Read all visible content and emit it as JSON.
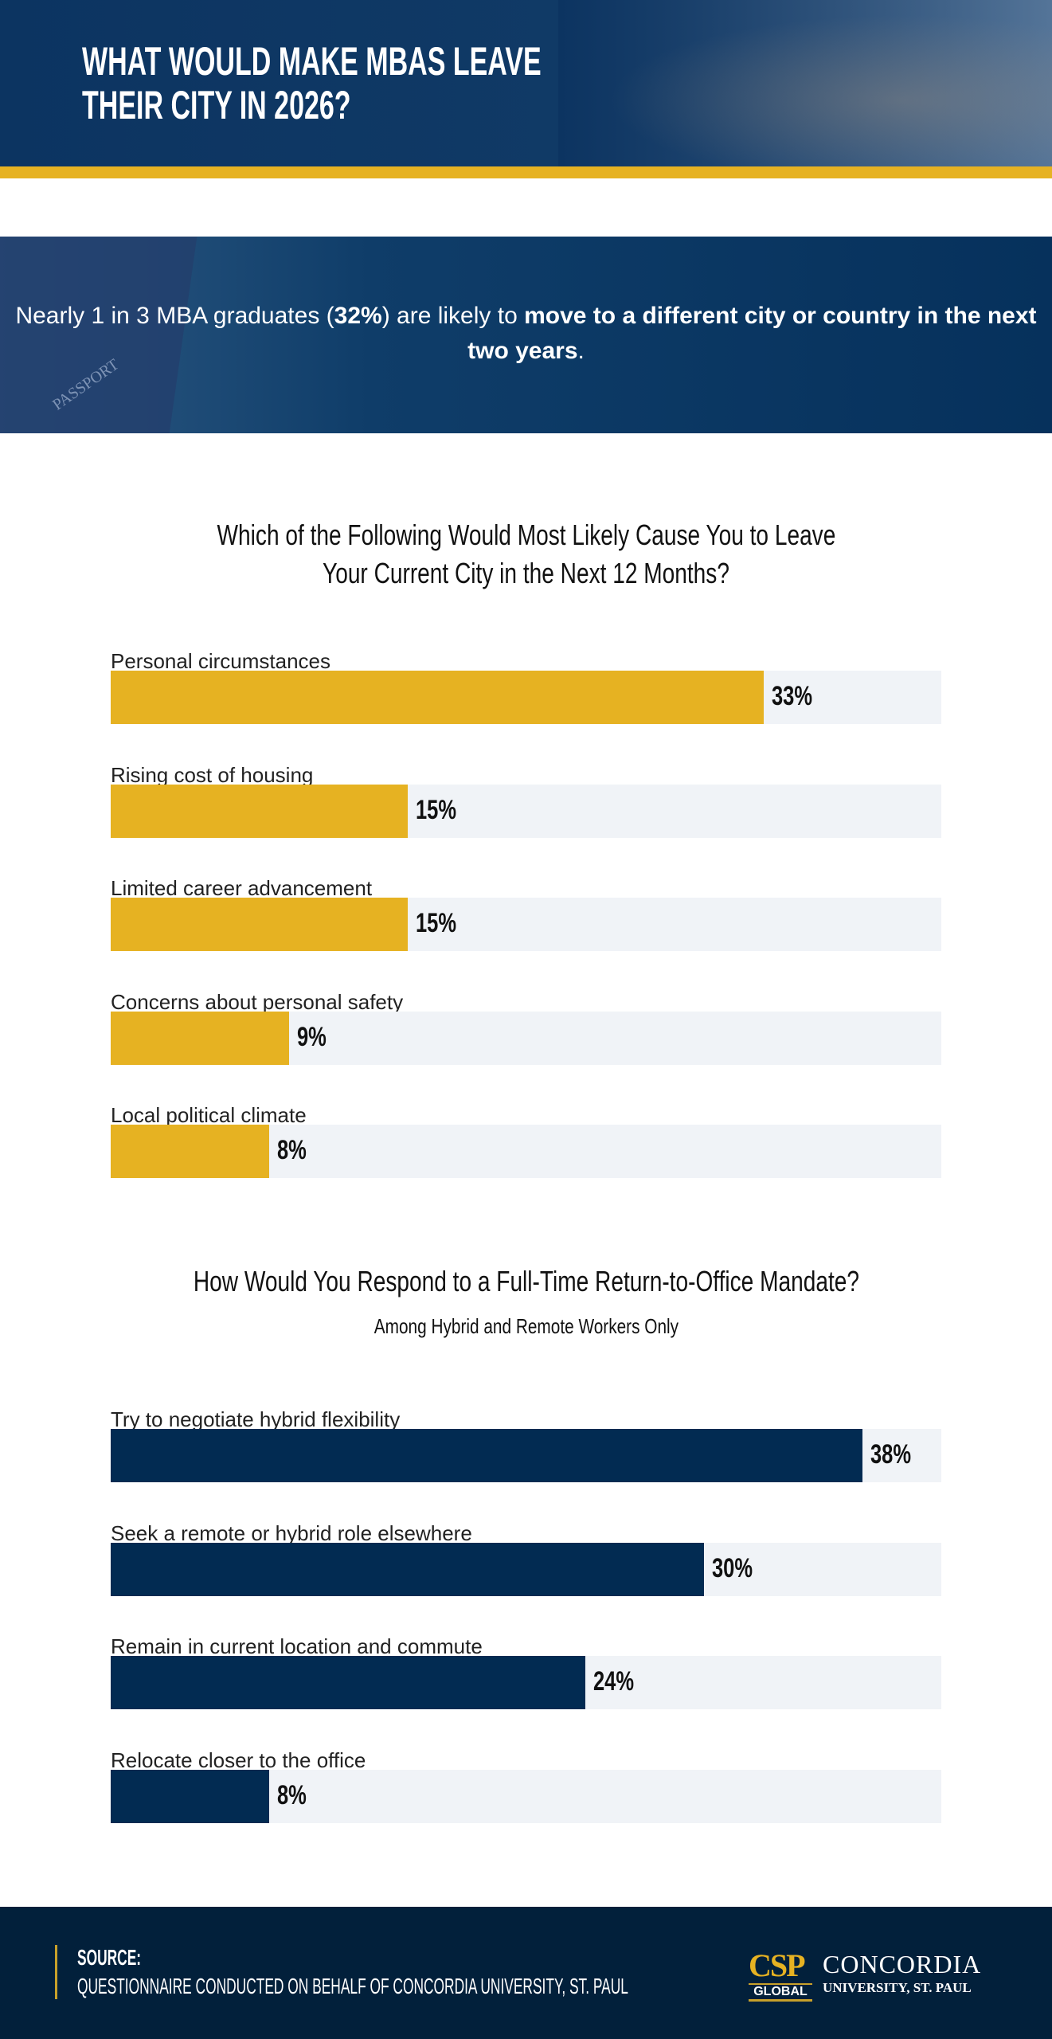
{
  "header": {
    "title_lines": [
      "What would make MBAs leave",
      "their city in 2026?"
    ]
  },
  "banner": {
    "text_1": "Nearly 1 in 3 MBA graduates (",
    "text_bold_1": "32%",
    "text_2": ") are likely to ",
    "text_bold_2": "move to a different city or country in the next two years",
    "text_3": ".",
    "passport_text": "PASSPORT"
  },
  "colors": {
    "gold": "#e6b222",
    "navy": "#022b52",
    "track": "#f0f3f7"
  },
  "chart_data": [
    {
      "type": "bar",
      "orientation": "horizontal",
      "title_lines": [
        "Which of the Following Would Most Likely Cause You to Leave",
        "Your Current City in the Next 12 Months?"
      ],
      "categories": [
        "Personal circumstances",
        "Rising cost of housing",
        "Limited career advancement",
        "Concerns about personal safety",
        "Local political climate"
      ],
      "values": [
        33,
        15,
        15,
        9,
        8
      ],
      "labels": [
        "33%",
        "15%",
        "15%",
        "9%",
        "8%"
      ],
      "xlim": [
        0,
        42
      ],
      "color": "#e6b222"
    },
    {
      "type": "bar",
      "orientation": "horizontal",
      "title_lines": [
        "How Would You Respond to a Full-Time Return-to-Office Mandate?"
      ],
      "subtitle": "Among Hybrid and Remote Workers Only",
      "categories": [
        "Try to negotiate hybrid flexibility",
        "Seek a remote or hybrid role elsewhere",
        "Remain in current location and commute",
        "Relocate closer to the office"
      ],
      "values": [
        38,
        30,
        24,
        8
      ],
      "labels": [
        "38%",
        "30%",
        "24%",
        "8%"
      ],
      "xlim": [
        0,
        42
      ],
      "color": "#022b52"
    }
  ],
  "footer": {
    "source_label": "SOURCE:",
    "source_text": "QUESTIONNAIRE CONDUCTED ON BEHALF OF CONCORDIA UNIVERSITY, ST. PAUL",
    "logo": {
      "mark": "CSP",
      "mark_sub": "GLOBAL",
      "name": "CONCORDIA",
      "sub": "UNIVERSITY, ST. PAUL"
    }
  }
}
